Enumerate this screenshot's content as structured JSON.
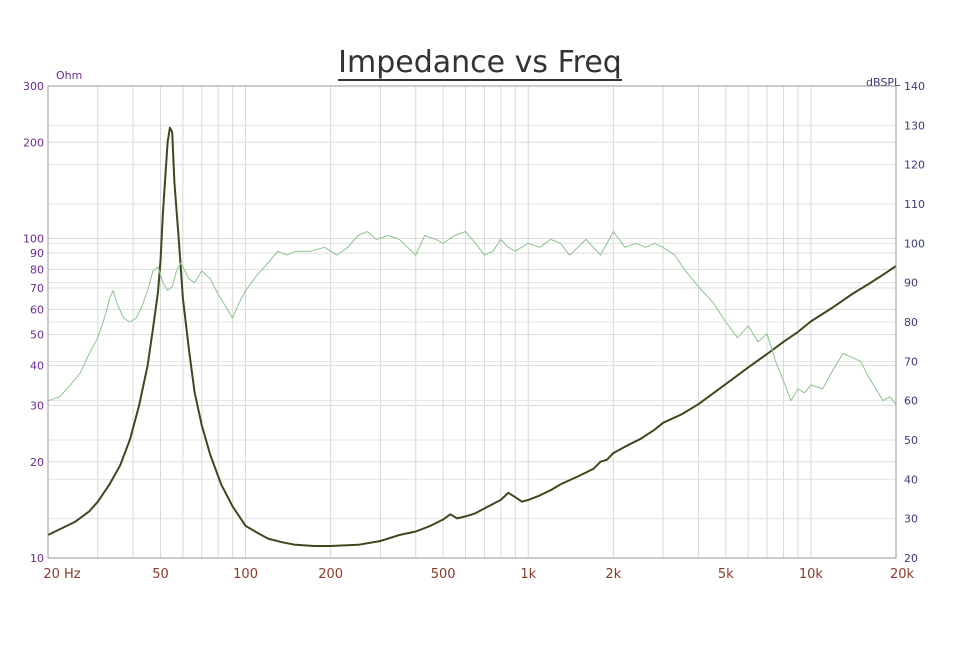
{
  "chart_data": {
    "type": "line",
    "title": "Impedance vs Freq",
    "x_scale": "log",
    "xlim": [
      20,
      20000
    ],
    "x_ticks": [
      {
        "value": 20,
        "label": "20 Hz"
      },
      {
        "value": 50,
        "label": "50"
      },
      {
        "value": 100,
        "label": "100"
      },
      {
        "value": 200,
        "label": "200"
      },
      {
        "value": 500,
        "label": "500"
      },
      {
        "value": 1000,
        "label": "1k"
      },
      {
        "value": 2000,
        "label": "2k"
      },
      {
        "value": 5000,
        "label": "5k"
      },
      {
        "value": 10000,
        "label": "10k"
      },
      {
        "value": 20000,
        "label": "20k"
      }
    ],
    "y_left": {
      "unit": "Ohm",
      "scale": "log",
      "lim": [
        10,
        300
      ],
      "ticks": [
        {
          "value": 10,
          "label": "10"
        },
        {
          "value": 20,
          "label": "20"
        },
        {
          "value": 30,
          "label": "30"
        },
        {
          "value": 40,
          "label": "40"
        },
        {
          "value": 50,
          "label": "50"
        },
        {
          "value": 60,
          "label": "60"
        },
        {
          "value": 70,
          "label": "70"
        },
        {
          "value": 80,
          "label": "80"
        },
        {
          "value": 90,
          "label": "90"
        },
        {
          "value": 100,
          "label": "100"
        },
        {
          "value": 200,
          "label": "200"
        },
        {
          "value": 300,
          "label": "300"
        }
      ]
    },
    "y_right": {
      "unit": "dBSPL",
      "scale": "linear",
      "lim": [
        20,
        140
      ],
      "ticks": [
        {
          "value": 20,
          "label": "20"
        },
        {
          "value": 30,
          "label": "30"
        },
        {
          "value": 40,
          "label": "40"
        },
        {
          "value": 50,
          "label": "50"
        },
        {
          "value": 60,
          "label": "60"
        },
        {
          "value": 70,
          "label": "70"
        },
        {
          "value": 80,
          "label": "80"
        },
        {
          "value": 90,
          "label": "90"
        },
        {
          "value": 100,
          "label": "100"
        },
        {
          "value": 110,
          "label": "110"
        },
        {
          "value": 120,
          "label": "120"
        },
        {
          "value": 130,
          "label": "130"
        },
        {
          "value": 140,
          "label": "140"
        }
      ]
    },
    "grid": true,
    "series": [
      {
        "axis": "left",
        "color": "#3a4a1e",
        "points": [
          [
            20,
            11.8
          ],
          [
            25,
            13
          ],
          [
            28,
            14
          ],
          [
            30,
            15
          ],
          [
            33,
            17
          ],
          [
            36,
            19.5
          ],
          [
            39,
            23.5
          ],
          [
            42,
            30
          ],
          [
            45,
            40
          ],
          [
            47,
            52
          ],
          [
            49,
            68
          ],
          [
            50,
            85
          ],
          [
            51,
            120
          ],
          [
            53,
            200
          ],
          [
            54,
            222
          ],
          [
            55,
            215
          ],
          [
            56,
            150
          ],
          [
            58,
            100
          ],
          [
            60,
            65
          ],
          [
            63,
            45
          ],
          [
            66,
            33
          ],
          [
            70,
            26
          ],
          [
            75,
            21
          ],
          [
            82,
            17
          ],
          [
            90,
            14.5
          ],
          [
            100,
            12.6
          ],
          [
            110,
            12
          ],
          [
            120,
            11.5
          ],
          [
            135,
            11.2
          ],
          [
            150,
            11.0
          ],
          [
            175,
            10.9
          ],
          [
            200,
            10.9
          ],
          [
            250,
            11.0
          ],
          [
            300,
            11.3
          ],
          [
            350,
            11.8
          ],
          [
            400,
            12.1
          ],
          [
            450,
            12.6
          ],
          [
            500,
            13.2
          ],
          [
            530,
            13.7
          ],
          [
            560,
            13.3
          ],
          [
            600,
            13.5
          ],
          [
            650,
            13.8
          ],
          [
            700,
            14.3
          ],
          [
            800,
            15.2
          ],
          [
            850,
            16.0
          ],
          [
            900,
            15.5
          ],
          [
            950,
            15.0
          ],
          [
            1000,
            15.2
          ],
          [
            1100,
            15.7
          ],
          [
            1200,
            16.3
          ],
          [
            1300,
            17.0
          ],
          [
            1500,
            18.0
          ],
          [
            1700,
            19.0
          ],
          [
            1800,
            20.0
          ],
          [
            1900,
            20.3
          ],
          [
            2000,
            21.3
          ],
          [
            2200,
            22.3
          ],
          [
            2500,
            23.6
          ],
          [
            2800,
            25.2
          ],
          [
            3000,
            26.5
          ],
          [
            3500,
            28.2
          ],
          [
            4000,
            30.3
          ],
          [
            4500,
            32.7
          ],
          [
            5000,
            35.0
          ],
          [
            6000,
            39.5
          ],
          [
            7000,
            43.5
          ],
          [
            8000,
            47.5
          ],
          [
            9000,
            51
          ],
          [
            10000,
            55
          ],
          [
            12000,
            61
          ],
          [
            14000,
            67
          ],
          [
            16000,
            72
          ],
          [
            18000,
            77
          ],
          [
            20000,
            82
          ]
        ]
      },
      {
        "axis": "right",
        "color": "#8cc48c",
        "points": [
          [
            20,
            60
          ],
          [
            22,
            61
          ],
          [
            24,
            64
          ],
          [
            26,
            67
          ],
          [
            28,
            72
          ],
          [
            30,
            76
          ],
          [
            32,
            82
          ],
          [
            33,
            86
          ],
          [
            34,
            88
          ],
          [
            35,
            85
          ],
          [
            37,
            81
          ],
          [
            39,
            80
          ],
          [
            41,
            81
          ],
          [
            43,
            84
          ],
          [
            45,
            88
          ],
          [
            47,
            93
          ],
          [
            49,
            94
          ],
          [
            51,
            90
          ],
          [
            53,
            88
          ],
          [
            55,
            89
          ],
          [
            57,
            93
          ],
          [
            59,
            95
          ],
          [
            61,
            93
          ],
          [
            63,
            91
          ],
          [
            66,
            90
          ],
          [
            70,
            93
          ],
          [
            75,
            91
          ],
          [
            80,
            87
          ],
          [
            85,
            84
          ],
          [
            90,
            81
          ],
          [
            95,
            85
          ],
          [
            100,
            88
          ],
          [
            110,
            92
          ],
          [
            120,
            95
          ],
          [
            130,
            98
          ],
          [
            140,
            97
          ],
          [
            150,
            98
          ],
          [
            170,
            98
          ],
          [
            190,
            99
          ],
          [
            210,
            97
          ],
          [
            230,
            99
          ],
          [
            250,
            102
          ],
          [
            270,
            103
          ],
          [
            290,
            101
          ],
          [
            320,
            102
          ],
          [
            350,
            101
          ],
          [
            400,
            97
          ],
          [
            430,
            102
          ],
          [
            470,
            101
          ],
          [
            500,
            100
          ],
          [
            550,
            102
          ],
          [
            600,
            103
          ],
          [
            650,
            100
          ],
          [
            700,
            97
          ],
          [
            750,
            98
          ],
          [
            800,
            101
          ],
          [
            850,
            99
          ],
          [
            900,
            98
          ],
          [
            1000,
            100
          ],
          [
            1100,
            99
          ],
          [
            1200,
            101
          ],
          [
            1300,
            100
          ],
          [
            1400,
            97
          ],
          [
            1500,
            99
          ],
          [
            1600,
            101
          ],
          [
            1700,
            99
          ],
          [
            1800,
            97
          ],
          [
            1900,
            100
          ],
          [
            2000,
            103
          ],
          [
            2200,
            99
          ],
          [
            2400,
            100
          ],
          [
            2600,
            99
          ],
          [
            2800,
            100
          ],
          [
            3000,
            99
          ],
          [
            3300,
            97
          ],
          [
            3600,
            93
          ],
          [
            4000,
            89
          ],
          [
            4500,
            85
          ],
          [
            5000,
            80
          ],
          [
            5500,
            76
          ],
          [
            6000,
            79
          ],
          [
            6500,
            75
          ],
          [
            7000,
            77
          ],
          [
            7500,
            70
          ],
          [
            8000,
            65
          ],
          [
            8500,
            60
          ],
          [
            9000,
            63
          ],
          [
            9500,
            62
          ],
          [
            10000,
            64
          ],
          [
            11000,
            63
          ],
          [
            12000,
            68
          ],
          [
            13000,
            72
          ],
          [
            14000,
            71
          ],
          [
            15000,
            70
          ],
          [
            16000,
            66
          ],
          [
            17000,
            63
          ],
          [
            18000,
            60
          ],
          [
            19000,
            61
          ],
          [
            20000,
            59
          ]
        ]
      }
    ]
  }
}
